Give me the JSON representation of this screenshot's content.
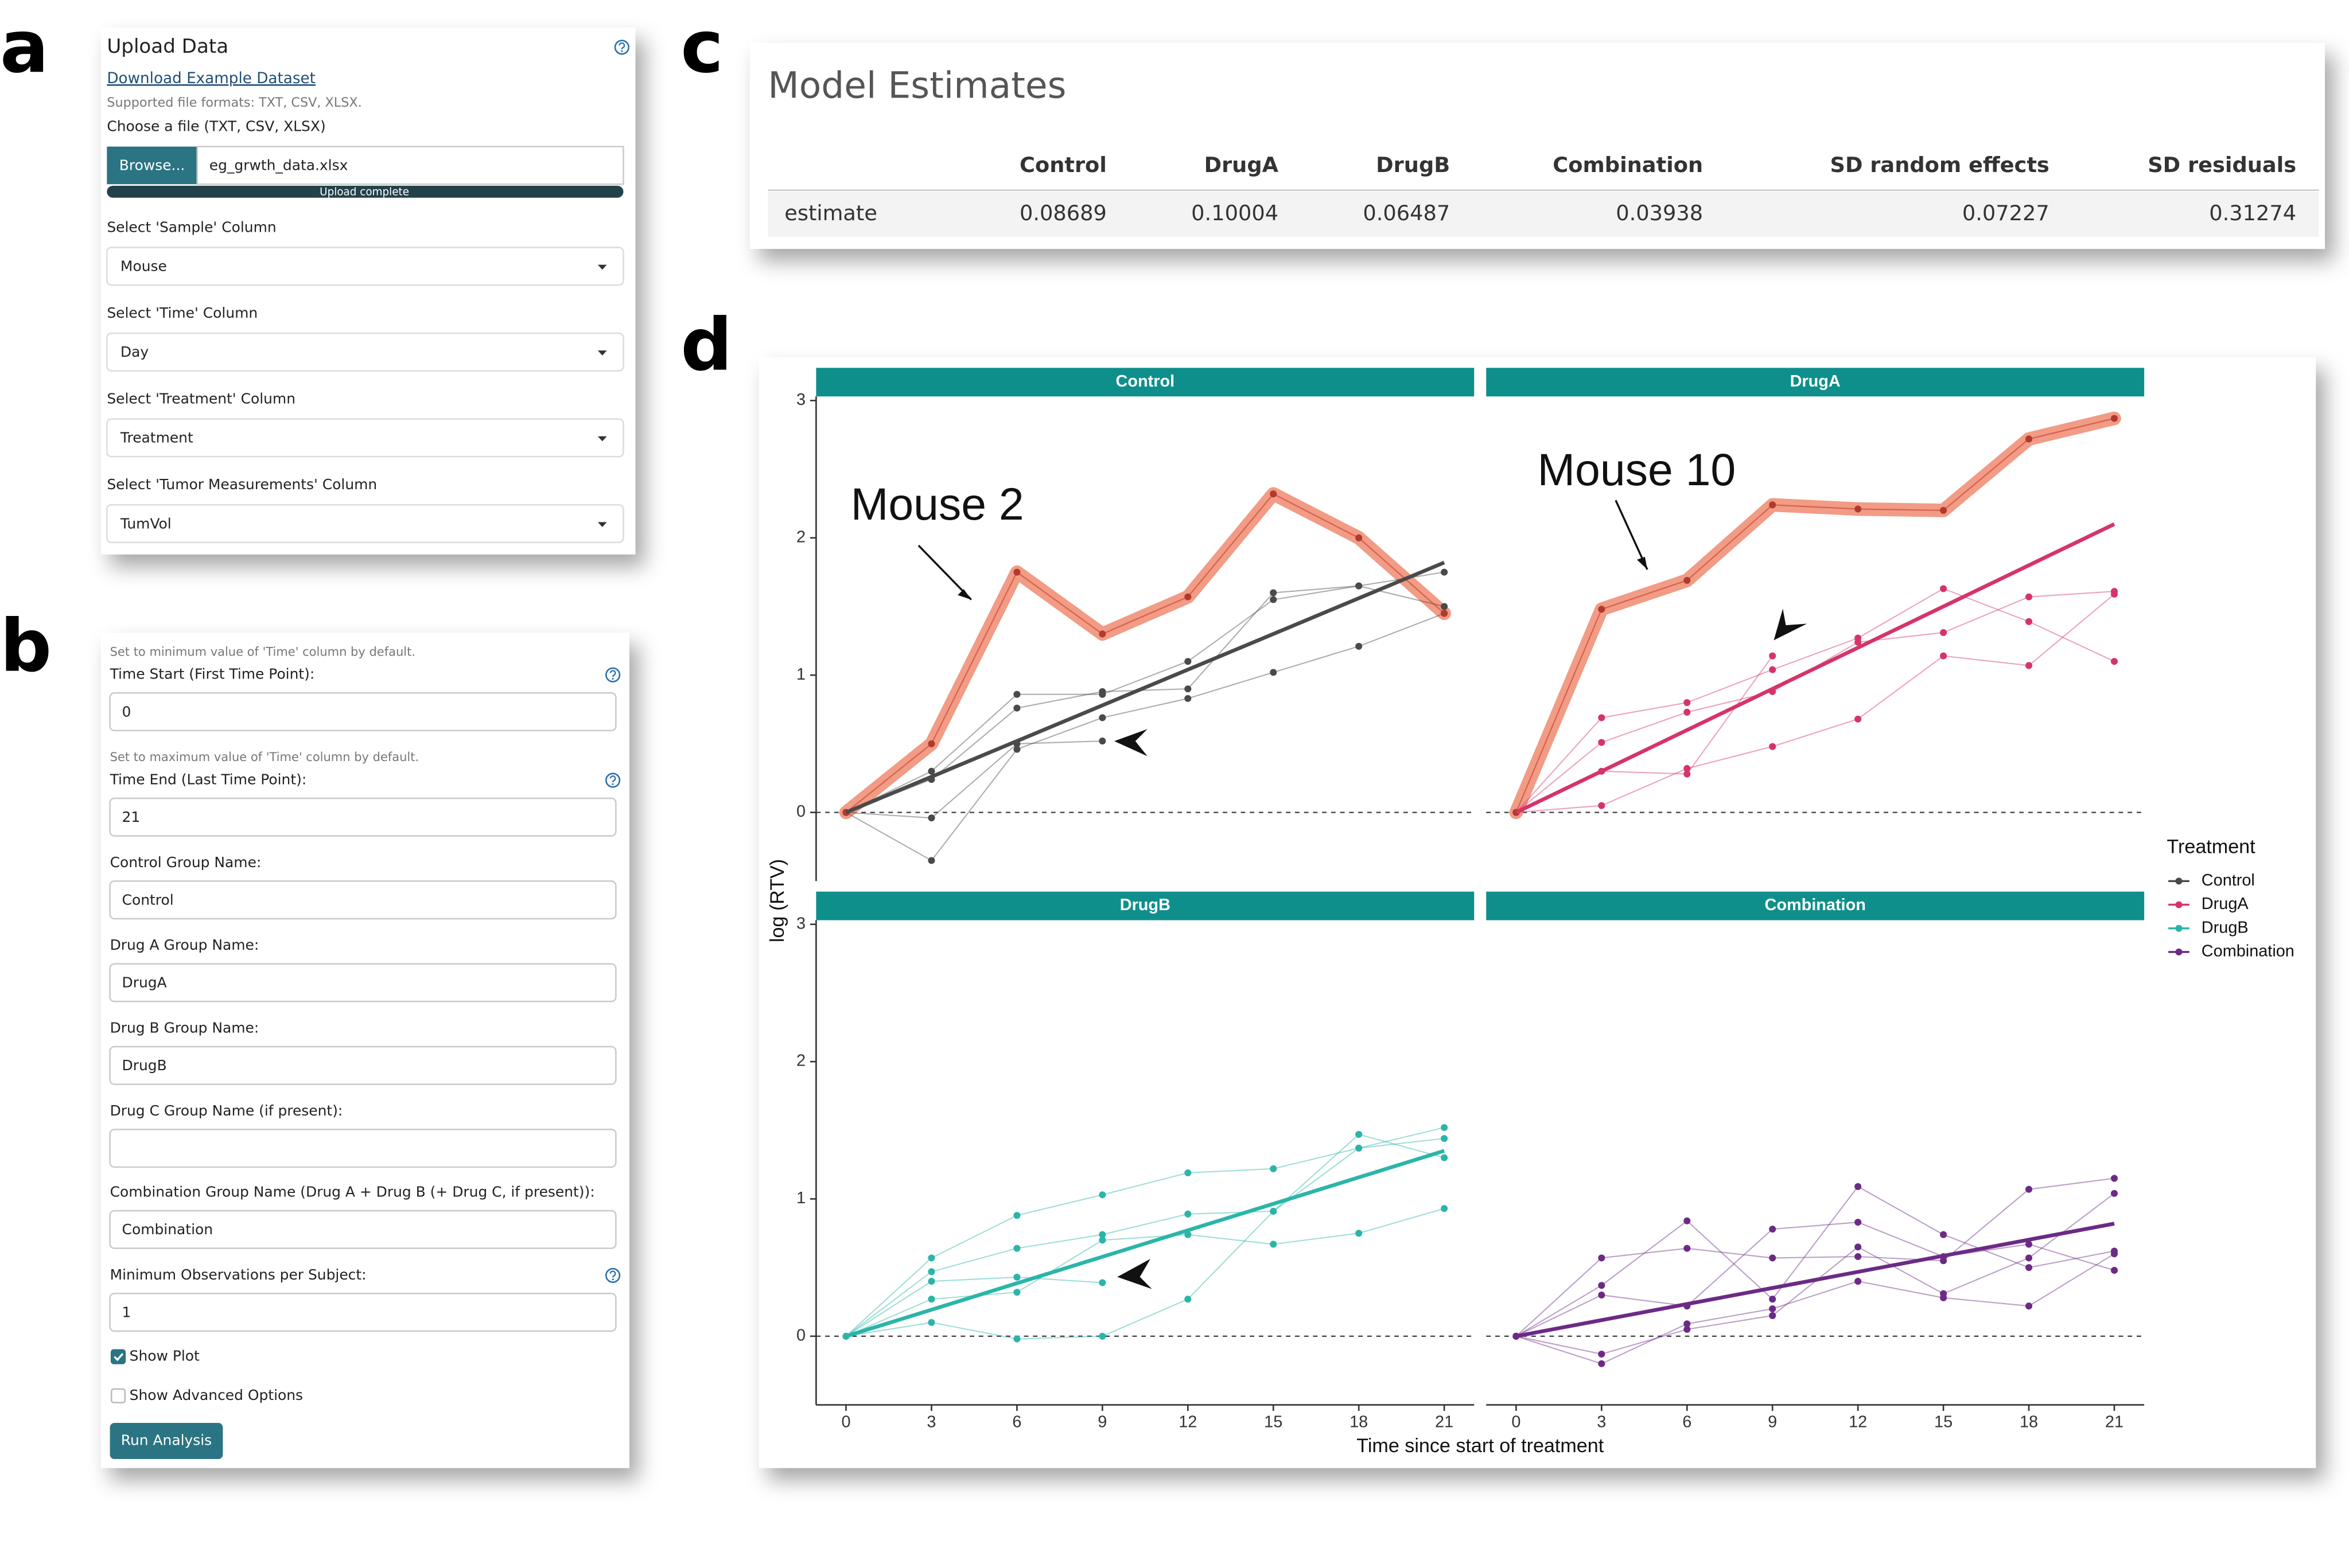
{
  "panel_labels": [
    "a",
    "b",
    "c",
    "d"
  ],
  "upload_panel": {
    "title": "Upload Data",
    "link": "Download Example Dataset",
    "note": "Supported file formats: TXT, CSV, XLSX.",
    "file_label": "Choose a file (TXT, CSV, XLSX)",
    "browse_button": "Browse...",
    "file_name": "eg_grwth_data.xlsx",
    "progress": "Upload complete",
    "selects": [
      {
        "label": "Select 'Sample' Column",
        "value": "Mouse"
      },
      {
        "label": "Select 'Time' Column",
        "value": "Day"
      },
      {
        "label": "Select 'Treatment' Column",
        "value": "Treatment"
      },
      {
        "label": "Select 'Tumor Measurements' Column",
        "value": "TumVol"
      }
    ]
  },
  "settings_panel": {
    "fields": [
      {
        "note": "Set to minimum value of 'Time' column by default.",
        "label": "Time Start (First Time Point):",
        "value": "0",
        "help": true
      },
      {
        "note": "Set to maximum value of 'Time' column by default.",
        "label": "Time End (Last Time Point):",
        "value": "21",
        "help": true
      },
      {
        "label": "Control Group Name:",
        "value": "Control"
      },
      {
        "label": "Drug A Group Name:",
        "value": "DrugA"
      },
      {
        "label": "Drug B Group Name:",
        "value": "DrugB"
      },
      {
        "label": "Drug C Group Name (if present):"
      },
      {
        "label": "Combination Group Name (Drug A + Drug B (+ Drug C, if present)):",
        "value": "Combination"
      },
      {
        "label": "Minimum Observations per Subject:",
        "value": "1",
        "help": true
      }
    ],
    "checkboxes": [
      {
        "label": "Show Plot",
        "checked": true
      },
      {
        "label": "Show Advanced Options",
        "checked": false
      }
    ],
    "button": "Run Analysis"
  },
  "estimates_table": {
    "title": "Model Estimates",
    "columns": [
      "Control",
      "DrugA",
      "DrugB",
      "Combination",
      "SD random effects",
      "SD residuals"
    ],
    "rows": [
      {
        "label": "estimate",
        "values": [
          0.08689,
          0.10004,
          0.06487,
          0.03938,
          0.07227,
          0.31274
        ]
      }
    ]
  },
  "chart_data": {
    "type": "line",
    "x_label": "Time since start of treatment",
    "y_label": "log (RTV)",
    "legend_title": "Treatment",
    "legend": "right",
    "grid": false,
    "x": [
      0,
      3,
      6,
      9,
      12,
      15,
      18,
      21
    ],
    "xlim": [
      -1.05,
      22.05
    ],
    "ylim": [
      -0.5,
      3.03
    ],
    "xticks": [
      0,
      3,
      6,
      9,
      12,
      15,
      18,
      21
    ],
    "yticks": [
      0,
      1,
      2,
      3
    ],
    "facets": [
      {
        "name": "Control",
        "color": "#4a4a4a",
        "fit_x": [
          0,
          21
        ],
        "fit": [
          0,
          1.82
        ],
        "mice": [
          {
            "values": [
              0,
              0.3,
              0.86,
              0.86,
              1.1,
              1.55,
              1.65,
              1.5
            ]
          },
          {
            "values": [
              0,
              0.24,
              0.76,
              0.88,
              0.9,
              1.6,
              1.65,
              1.75
            ]
          },
          {
            "values": [
              0,
              -0.04,
              0.5,
              0.52,
              null,
              null,
              null,
              null
            ]
          },
          {
            "values": [
              0,
              -0.35,
              0.46,
              0.69,
              0.83,
              1.02,
              1.21,
              1.45
            ]
          }
        ],
        "highlight": {
          "label": "Mouse 2",
          "color": "#f08a70",
          "values": [
            0,
            0.5,
            1.75,
            1.3,
            1.57,
            2.32,
            2.0,
            1.45
          ]
        }
      },
      {
        "name": "DrugA",
        "color": "#d6336c",
        "fit_x": [
          0,
          21
        ],
        "fit": [
          0,
          2.1
        ],
        "mice": [
          {
            "values": [
              0,
              0.69,
              0.8,
              1.04,
              1.27,
              1.63,
              1.39,
              1.1
            ]
          },
          {
            "values": [
              0,
              0.51,
              0.73,
              0.88,
              1.24,
              1.31,
              1.57,
              1.61
            ]
          },
          {
            "values": [
              0,
              0.3,
              0.28,
              1.14,
              null,
              null,
              null,
              null
            ]
          },
          {
            "values": [
              0,
              0.05,
              0.32,
              0.48,
              0.68,
              1.14,
              1.07,
              1.59
            ]
          }
        ],
        "highlight": {
          "label": "Mouse 10",
          "color": "#f08a70",
          "values": [
            0,
            1.48,
            1.69,
            2.24,
            2.21,
            2.2,
            2.72,
            2.87
          ]
        }
      },
      {
        "name": "DrugB",
        "color": "#2bb5a8",
        "fit_x": [
          0,
          21
        ],
        "fit": [
          0,
          1.35
        ],
        "mice": [
          {
            "values": [
              0,
              0.57,
              0.88,
              1.03,
              1.19,
              1.22,
              1.37,
              1.44
            ]
          },
          {
            "values": [
              0,
              0.47,
              0.64,
              0.74,
              0.89,
              0.91,
              1.47,
              1.3
            ]
          },
          {
            "values": [
              0,
              0.4,
              0.43,
              0.39,
              null,
              null,
              null,
              null
            ]
          },
          {
            "values": [
              0,
              0.27,
              0.32,
              0.7,
              0.74,
              0.67,
              0.75,
              0.93
            ]
          },
          {
            "values": [
              0,
              0.1,
              -0.02,
              0.0,
              0.27,
              0.91,
              1.37,
              1.52
            ]
          }
        ]
      },
      {
        "name": "Combination",
        "color": "#6c2a85",
        "fit_x": [
          0,
          21
        ],
        "fit": [
          0,
          0.82
        ],
        "mice": [
          {
            "values": [
              0,
              0.57,
              0.64,
              0.57,
              0.58,
              0.55,
              1.07,
              1.15
            ]
          },
          {
            "values": [
              0,
              0.37,
              0.84,
              0.27,
              1.09,
              0.74,
              0.5,
              0.62
            ]
          },
          {
            "values": [
              0,
              0.3,
              0.22,
              0.78,
              0.83,
              0.58,
              0.67,
              0.48
            ]
          },
          {
            "values": [
              0,
              -0.13,
              0.05,
              0.15,
              0.65,
              0.31,
              0.57,
              1.04
            ]
          },
          {
            "values": [
              0,
              -0.2,
              0.09,
              0.2,
              0.4,
              0.28,
              0.22,
              0.6
            ]
          }
        ]
      }
    ]
  }
}
